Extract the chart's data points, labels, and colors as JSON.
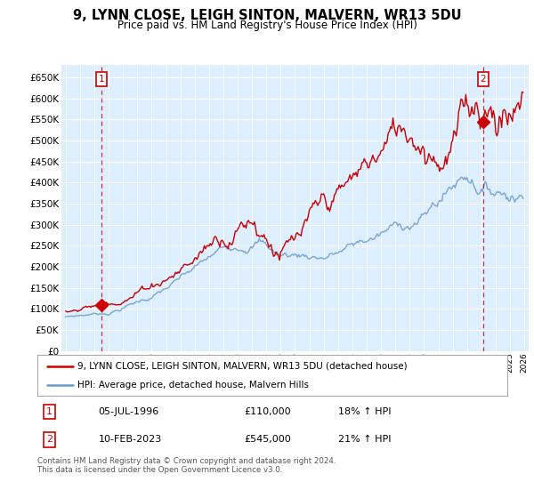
{
  "title": "9, LYNN CLOSE, LEIGH SINTON, MALVERN, WR13 5DU",
  "subtitle": "Price paid vs. HM Land Registry's House Price Index (HPI)",
  "ylim": [
    0,
    680000
  ],
  "yticks": [
    0,
    50000,
    100000,
    150000,
    200000,
    250000,
    300000,
    350000,
    400000,
    450000,
    500000,
    550000,
    600000,
    650000
  ],
  "xlim_start": 1993.7,
  "xlim_end": 2026.3,
  "sale1_date": 1996.51,
  "sale1_price": 110000,
  "sale1_label": "1",
  "sale1_hpi_pct": "18% ↑ HPI",
  "sale1_date_str": "05-JUL-1996",
  "sale2_date": 2023.12,
  "sale2_price": 545000,
  "sale2_label": "2",
  "sale2_hpi_pct": "21% ↑ HPI",
  "sale2_date_str": "10-FEB-2023",
  "line_color_property": "#cc0000",
  "line_color_hpi": "#6699cc",
  "bg_color": "#ddeeff",
  "grid_color": "#ffffff",
  "legend_label_property": "9, LYNN CLOSE, LEIGH SINTON, MALVERN, WR13 5DU (detached house)",
  "legend_label_hpi": "HPI: Average price, detached house, Malvern Hills",
  "footnote": "Contains HM Land Registry data © Crown copyright and database right 2024.\nThis data is licensed under the Open Government Licence v3.0."
}
